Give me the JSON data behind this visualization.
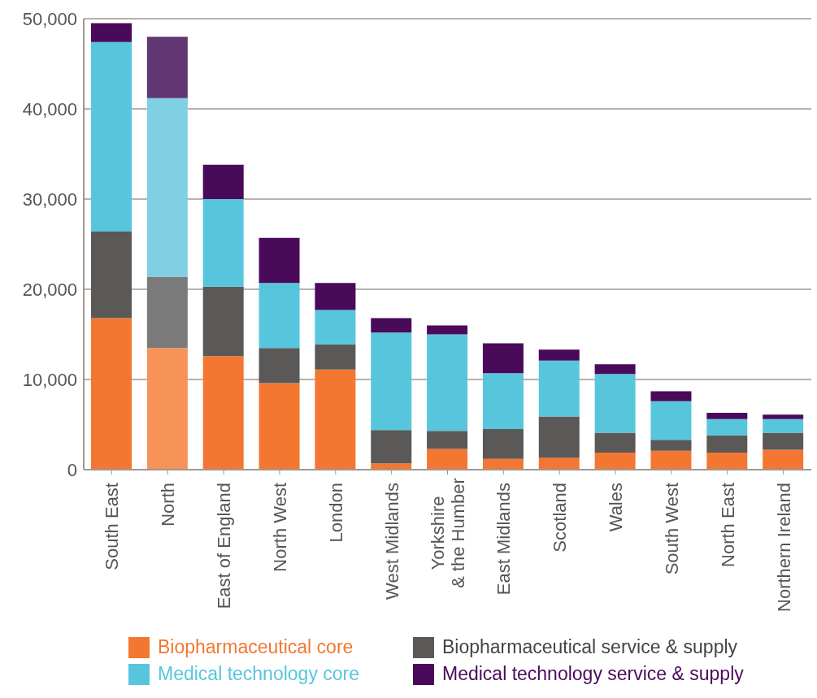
{
  "chart_data": {
    "type": "bar",
    "stacked": true,
    "categories": [
      "South East",
      "North",
      "East of England",
      "North West",
      "London",
      "West Midlands",
      "Yorkshire & the Humber",
      "East Midlands",
      "Scotland",
      "Wales",
      "South West",
      "North East",
      "Northern Ireland"
    ],
    "series": [
      {
        "name": "Biopharmaceutical core",
        "color": "#f37731",
        "colors": [
          "#f37731",
          "#f79358",
          "#f37731",
          "#f37731",
          "#f37731",
          "#f37731",
          "#f37731",
          "#f37731",
          "#f37731",
          "#f37731",
          "#f37731",
          "#f37731",
          "#f37731"
        ],
        "values": [
          16800,
          13500,
          12600,
          9600,
          11100,
          700,
          2300,
          1200,
          1300,
          1900,
          2100,
          1900,
          2200
        ]
      },
      {
        "name": "Biopharmaceutical service & supply",
        "color": "#5a5957",
        "colors": [
          "#5a5957",
          "#7a7a7a",
          "#5a5957",
          "#5a5957",
          "#5a5957",
          "#5a5957",
          "#5a5957",
          "#5a5957",
          "#5a5957",
          "#5a5957",
          "#5a5957",
          "#5a5957",
          "#5a5957"
        ],
        "values": [
          9600,
          7900,
          7700,
          3900,
          2800,
          3700,
          2000,
          3300,
          4600,
          2200,
          1200,
          1900,
          1900
        ]
      },
      {
        "name": "Medical technology core",
        "color": "#57c6dd",
        "colors": [
          "#57c6dd",
          "#7fd0e2",
          "#57c6dd",
          "#57c6dd",
          "#57c6dd",
          "#57c6dd",
          "#57c6dd",
          "#57c6dd",
          "#57c6dd",
          "#57c6dd",
          "#57c6dd",
          "#57c6dd",
          "#57c6dd"
        ],
        "values": [
          21000,
          19800,
          9700,
          7200,
          3800,
          10800,
          10700,
          6200,
          6200,
          6500,
          4300,
          1800,
          1500
        ]
      },
      {
        "name": "Medical technology service & supply",
        "color": "#4a0a5a",
        "colors": [
          "#4a0a5a",
          "#623672",
          "#4a0a5a",
          "#4a0a5a",
          "#4a0a5a",
          "#4a0a5a",
          "#4a0a5a",
          "#4a0a5a",
          "#4a0a5a",
          "#4a0a5a",
          "#4a0a5a",
          "#4a0a5a",
          "#4a0a5a"
        ],
        "values": [
          2100,
          6800,
          3800,
          5000,
          3000,
          1600,
          1000,
          3300,
          1200,
          1100,
          1100,
          700,
          500
        ]
      }
    ],
    "ylim": [
      0,
      50000
    ],
    "yticks": [
      {
        "value": 0,
        "label": "0"
      },
      {
        "value": 10000,
        "label": "10,000"
      },
      {
        "value": 20000,
        "label": "20,000"
      },
      {
        "value": 30000,
        "label": "30,000"
      },
      {
        "value": 40000,
        "label": "40,000"
      },
      {
        "value": 50000,
        "label": "50,000"
      }
    ],
    "grid": "y",
    "legend": "bottom"
  }
}
